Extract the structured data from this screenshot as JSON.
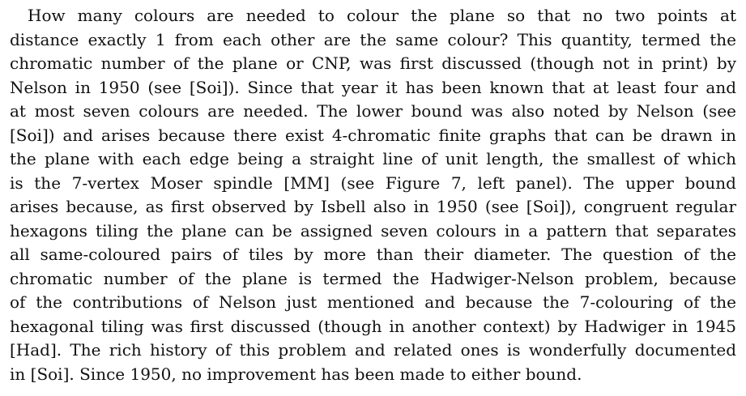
{
  "paragraph": {
    "lines": [
      "How many colours are needed to colour the plane so that no two points at",
      "distance exactly 1 from each other are the same colour? This quantity, termed the",
      "chromatic number of the plane or CNP, was first discussed (though not in print) by",
      "Nelson in 1950 (see [Soi]). Since that year it has been known that at least four and",
      "at most seven colours are needed. The lower bound was also noted by Nelson (see",
      "[Soi]) and arises because there exist 4-chromatic finite graphs that can be drawn in",
      "the plane with each edge being a straight line of unit length, the smallest of which",
      "is the 7-vertex Moser spindle [MM] (see Figure 7, left panel). The upper bound",
      "arises because, as first observed by Isbell also in 1950 (see [Soi]), congruent regular",
      "hexagons tiling the plane can be assigned seven colours in a pattern that separates",
      "all same-coloured pairs of tiles by more than their diameter. The question of the",
      "chromatic number of the plane is termed the Hadwiger-Nelson problem, because",
      "of the contributions of Nelson just mentioned and because the 7-colouring of the",
      "hexagonal tiling was first discussed (though in another context) by Hadwiger in 1945",
      "[Had]. The rich history of this problem and related ones is wonderfully documented",
      "in [Soi]. Since 1950, no improvement has been made to either bound."
    ]
  }
}
